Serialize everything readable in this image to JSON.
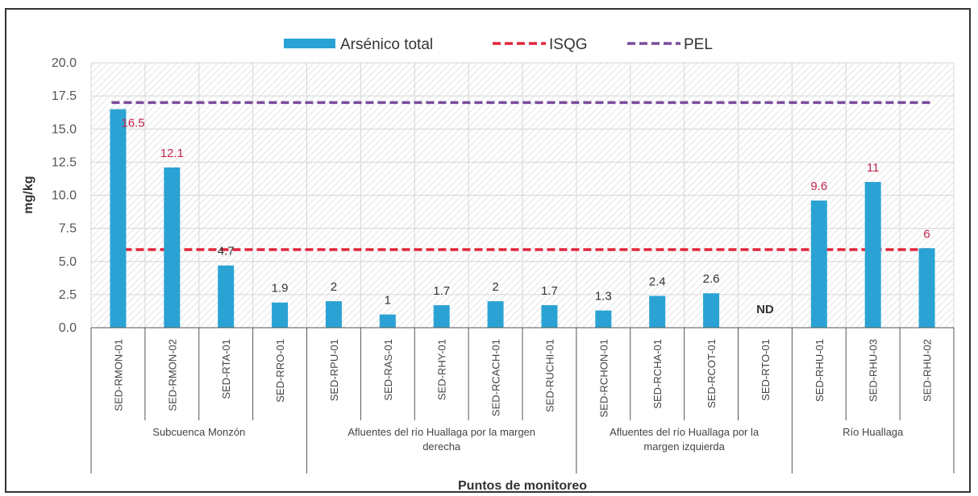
{
  "chart_data": {
    "type": "bar",
    "title": "",
    "xlabel": "Puntos de monitoreo",
    "ylabel": "mg/kg",
    "ylim": [
      0,
      20
    ],
    "yticks": [
      "0.0",
      "2.5",
      "5.0",
      "7.5",
      "10.0",
      "12.5",
      "15.0",
      "17.5",
      "20.0"
    ],
    "grid": true,
    "legend_position": "top",
    "categories": [
      "SED-RMON-01",
      "SED-RMON-02",
      "SED-RTA-01",
      "SED-RRO-01",
      "SED-RPU-01",
      "SED-RAS-01",
      "SED-RHY-01",
      "SED-RCACH-01",
      "SED-RUCHI-01",
      "SED-RCHON-01",
      "SED-RCHA-01",
      "SED-RCOT-01",
      "SED-RTO-01",
      "SED-RHU-01",
      "SED-RHU-03",
      "SED-RHU-02"
    ],
    "series": [
      {
        "name": "Arsénico total",
        "color": "#2aa3d4",
        "values": [
          16.5,
          12.1,
          4.7,
          1.9,
          2,
          1,
          1.7,
          2,
          1.7,
          1.3,
          2.4,
          2.6,
          null,
          9.6,
          11,
          6
        ],
        "labels": [
          "16.5",
          "12.1",
          "4.7",
          "1.9",
          "2",
          "1",
          "1.7",
          "2",
          "1.7",
          "1.3",
          "2.4",
          "2.6",
          "ND",
          "9.6",
          "11",
          "6"
        ],
        "label_colors": [
          "#c0244a",
          "#c0244a",
          "#333333",
          "#333333",
          "#333333",
          "#333333",
          "#333333",
          "#333333",
          "#333333",
          "#333333",
          "#333333",
          "#333333",
          "#333333",
          "#c0244a",
          "#c0244a",
          "#c0244a"
        ]
      }
    ],
    "reference_lines": [
      {
        "name": "ISQG",
        "value": 5.9,
        "color": "#e0263a",
        "style": "dashed"
      },
      {
        "name": "PEL",
        "value": 17.0,
        "color": "#7a4c9c",
        "style": "dashed"
      }
    ],
    "groups": [
      {
        "label_lines": [
          "Subcuenca Monzón"
        ],
        "start": 0,
        "end": 3
      },
      {
        "label_lines": [
          "Afluentes del río Huallaga por la margen",
          "derecha"
        ],
        "start": 4,
        "end": 8
      },
      {
        "label_lines": [
          "Afluentes del río Huallaga por la",
          "margen izquierda"
        ],
        "start": 9,
        "end": 12
      },
      {
        "label_lines": [
          "Río Huallaga"
        ],
        "start": 13,
        "end": 15
      }
    ]
  }
}
